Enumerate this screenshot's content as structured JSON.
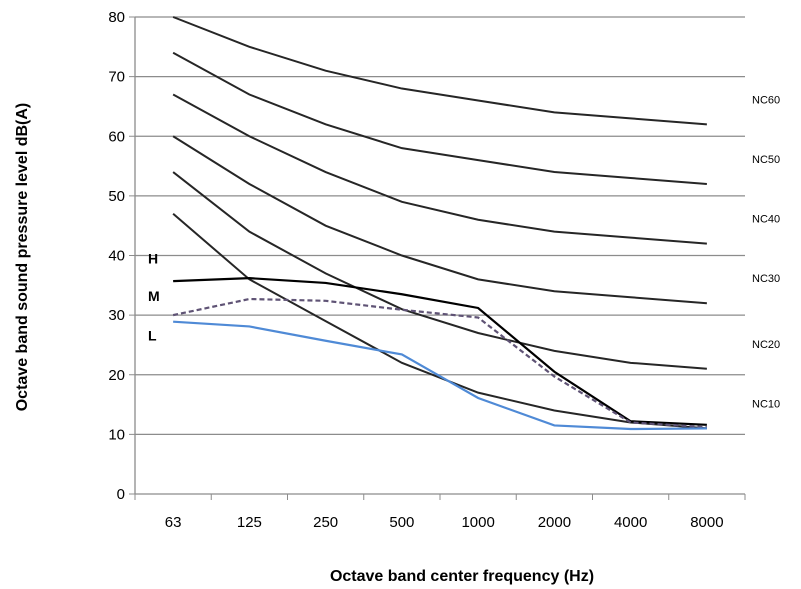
{
  "chart_data": {
    "type": "line",
    "title": "",
    "xlabel": "Octave band center frequency (Hz)",
    "ylabel": "Octave band sound pressure level dB(A)",
    "categories": [
      "63",
      "125",
      "250",
      "500",
      "1000",
      "2000",
      "4000",
      "8000"
    ],
    "ylim": [
      0,
      80
    ],
    "yticks": [
      0,
      10,
      20,
      30,
      40,
      50,
      60,
      70,
      80
    ],
    "grid": "horizontal",
    "nc_curves": [
      {
        "name": "NC60",
        "values": [
          80,
          75,
          71,
          68,
          66,
          64,
          63,
          62
        ],
        "color": "#262626"
      },
      {
        "name": "NC50",
        "values": [
          74,
          67,
          62,
          58,
          56,
          54,
          53,
          52
        ],
        "color": "#262626"
      },
      {
        "name": "NC40",
        "values": [
          67,
          60,
          54,
          49,
          46,
          44,
          43,
          42
        ],
        "color": "#262626"
      },
      {
        "name": "NC30",
        "values": [
          60,
          52,
          45,
          40,
          36,
          34,
          33,
          32
        ],
        "color": "#262626"
      },
      {
        "name": "NC20",
        "values": [
          54,
          44,
          37,
          31,
          27,
          24,
          22,
          21
        ],
        "color": "#262626"
      },
      {
        "name": "NC10",
        "values": [
          47,
          36,
          29,
          22,
          17,
          14,
          12,
          11
        ],
        "color": "#262626"
      }
    ],
    "series": [
      {
        "name": "H",
        "values": [
          35.7,
          36.2,
          35.4,
          33.5,
          31.2,
          20.5,
          12.2,
          11.6
        ],
        "color": "#000000",
        "dash": false
      },
      {
        "name": "M",
        "values": [
          30.0,
          32.7,
          32.4,
          30.9,
          29.6,
          19.7,
          12.0,
          11.2
        ],
        "color": "#5f5375",
        "dash": true
      },
      {
        "name": "L",
        "values": [
          28.9,
          28.1,
          25.7,
          23.4,
          16.1,
          11.5,
          10.9,
          11.0
        ],
        "color": "#4f8ad6",
        "dash": false
      }
    ]
  }
}
